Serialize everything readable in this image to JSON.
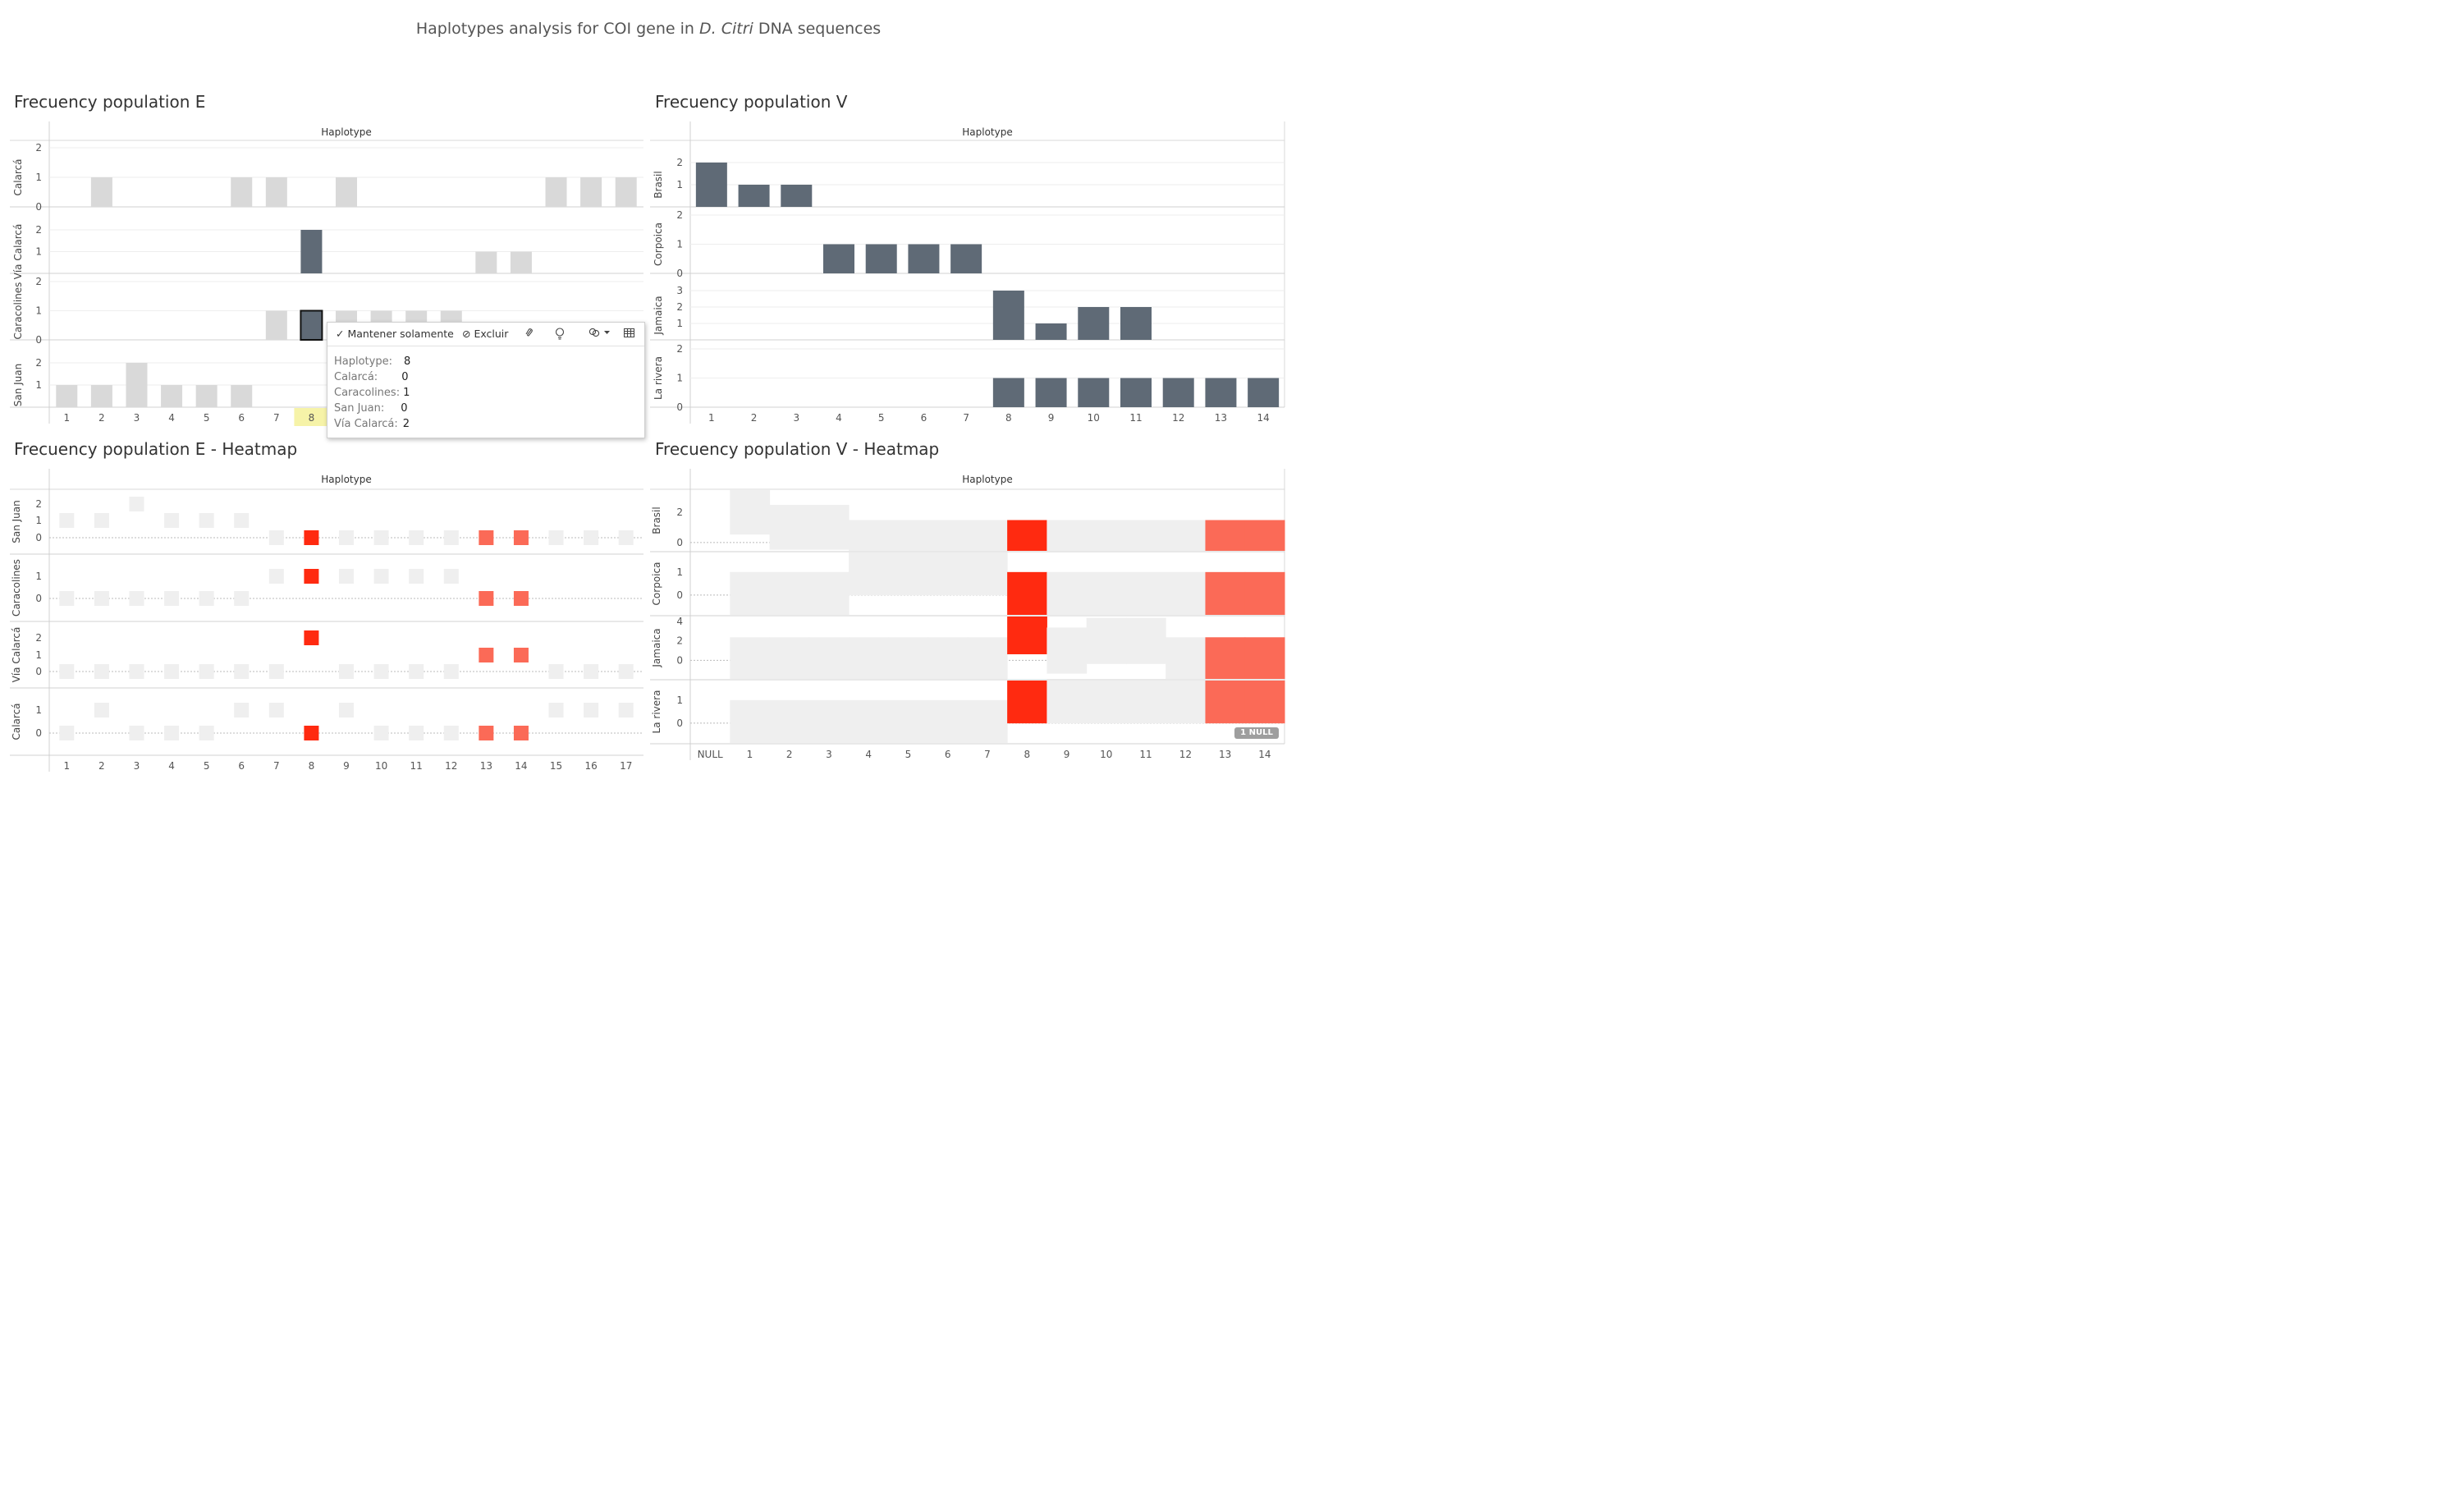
{
  "page": {
    "title_prefix": "Haplotypes analysis for COI gene in ",
    "title_species": "D. Citri",
    "title_suffix": " DNA sequences"
  },
  "colors": {
    "highlight_bar": "#5f6a76",
    "faded_bar": "#d9d9d9",
    "heat_light": "#efefef",
    "heat_red": "#ff2a10",
    "heat_salmon": "#fb6a57",
    "selected_tick": "#f6f3a8"
  },
  "tooltip": {
    "keep_only": "Mantener solamente",
    "exclude": "Excluir",
    "rows": [
      {
        "label": "Haplotype:",
        "value": "8"
      },
      {
        "label": "Calarcá:",
        "value": "0"
      },
      {
        "label": "Caracolines:",
        "value": "1"
      },
      {
        "label": "San Juan:",
        "value": "0"
      },
      {
        "label": "Vía Calarcá:",
        "value": "2"
      }
    ]
  },
  "null_badge": "1 NULL",
  "chart_data": [
    {
      "type": "bar",
      "title": "Frecuency population E",
      "xlabel": "Haplotype",
      "categories": [
        "1",
        "2",
        "3",
        "4",
        "5",
        "6",
        "7",
        "8",
        "9",
        "10",
        "11",
        "12",
        "13",
        "14",
        "15",
        "16",
        "17"
      ],
      "selected_category": "8",
      "series": [
        {
          "name": "Calarcá",
          "yticks": [
            "0",
            "1",
            "2"
          ],
          "ymax": 2,
          "values": [
            0,
            1,
            0,
            0,
            0,
            1,
            1,
            0,
            1,
            0,
            0,
            0,
            0,
            0,
            1,
            1,
            1
          ],
          "dark": [
            0,
            0,
            0,
            0,
            0,
            0,
            0,
            0,
            0,
            0,
            0,
            0,
            0,
            0,
            0,
            0,
            0
          ]
        },
        {
          "name": "Vía Calarcá",
          "yticks": [
            "1",
            "2"
          ],
          "ymax": 2,
          "values": [
            0,
            0,
            0,
            0,
            0,
            0,
            0,
            2,
            0,
            0,
            0,
            0,
            1,
            1,
            0,
            0,
            0
          ],
          "dark": [
            0,
            0,
            0,
            0,
            0,
            0,
            0,
            1,
            0,
            0,
            0,
            0,
            0,
            0,
            0,
            0,
            0
          ]
        },
        {
          "name": "Caracolines",
          "yticks": [
            "0",
            "1",
            "2"
          ],
          "ymax": 2,
          "values": [
            0,
            0,
            0,
            0,
            0,
            0,
            1,
            1,
            1,
            1,
            1,
            1,
            0,
            0,
            0,
            0,
            0
          ],
          "dark": [
            0,
            0,
            0,
            0,
            0,
            0,
            0,
            1,
            0,
            0,
            0,
            0,
            0,
            0,
            0,
            0,
            0
          ]
        },
        {
          "name": "San Juan",
          "yticks": [
            "1",
            "2"
          ],
          "ymax": 2,
          "values": [
            1,
            1,
            2,
            1,
            1,
            1,
            0,
            0,
            0,
            0,
            0,
            0,
            0,
            0,
            0,
            0,
            0
          ],
          "dark": [
            0,
            0,
            0,
            0,
            0,
            0,
            0,
            0,
            0,
            0,
            0,
            0,
            0,
            0,
            0,
            0,
            0
          ]
        }
      ]
    },
    {
      "type": "bar",
      "title": "Frecuency population V",
      "xlabel": "Haplotype",
      "categories": [
        "1",
        "2",
        "3",
        "4",
        "5",
        "6",
        "7",
        "8",
        "9",
        "10",
        "11",
        "12",
        "13",
        "14"
      ],
      "series": [
        {
          "name": "Brasil",
          "yticks": [
            "1",
            "2"
          ],
          "ymax": 2,
          "values": [
            2,
            1,
            1,
            0,
            0,
            0,
            0,
            0,
            0,
            0,
            0,
            0,
            0,
            0
          ]
        },
        {
          "name": "Corpoica",
          "yticks": [
            "0",
            "1",
            "2"
          ],
          "ymax": 2,
          "values": [
            0,
            0,
            0,
            1,
            1,
            1,
            1,
            0,
            0,
            0,
            0,
            0,
            0,
            0
          ]
        },
        {
          "name": "Jamaica",
          "yticks": [
            "1",
            "2",
            "3"
          ],
          "ymax": 3,
          "values": [
            0,
            0,
            0,
            0,
            0,
            0,
            0,
            3,
            1,
            2,
            2,
            0,
            0,
            0
          ]
        },
        {
          "name": "La rivera",
          "yticks": [
            "0",
            "1",
            "2"
          ],
          "ymax": 2,
          "values": [
            0,
            0,
            0,
            0,
            0,
            0,
            0,
            1,
            1,
            1,
            1,
            1,
            1,
            1
          ]
        }
      ]
    },
    {
      "type": "heatmap",
      "title": "Frecuency population E - Heatmap",
      "xlabel": "Haplotype",
      "categories": [
        "1",
        "2",
        "3",
        "4",
        "5",
        "6",
        "7",
        "8",
        "9",
        "10",
        "11",
        "12",
        "13",
        "14",
        "15",
        "16",
        "17"
      ],
      "series": [
        {
          "name": "San Juan",
          "yticks": [
            "0",
            "1",
            "2"
          ],
          "values": [
            1,
            1,
            2,
            1,
            1,
            1,
            0,
            0,
            0,
            0,
            0,
            0,
            0,
            0,
            0,
            0,
            0
          ],
          "colors": [
            "l",
            "l",
            "l",
            "l",
            "l",
            "l",
            "l",
            "r",
            "l",
            "l",
            "l",
            "l",
            "s",
            "s",
            "l",
            "l",
            "l"
          ]
        },
        {
          "name": "Caracolines",
          "yticks": [
            "0",
            "1"
          ],
          "values": [
            0,
            0,
            0,
            0,
            0,
            0,
            1,
            1,
            1,
            1,
            1,
            1,
            0,
            0,
            null,
            null,
            null
          ],
          "colors": [
            "l",
            "l",
            "l",
            "l",
            "l",
            "l",
            "l",
            "r",
            "l",
            "l",
            "l",
            "l",
            "s",
            "s",
            "l",
            "l",
            "l"
          ]
        },
        {
          "name": "Vía Calarcá",
          "yticks": [
            "0",
            "1",
            "2"
          ],
          "values": [
            0,
            0,
            0,
            0,
            0,
            0,
            0,
            2,
            0,
            0,
            0,
            0,
            1,
            1,
            0,
            0,
            0
          ],
          "colors": [
            "l",
            "l",
            "l",
            "l",
            "l",
            "l",
            "l",
            "r",
            "l",
            "l",
            "l",
            "l",
            "s",
            "s",
            "l",
            "l",
            "l"
          ]
        },
        {
          "name": "Calarcá",
          "yticks": [
            "0",
            "1"
          ],
          "values": [
            0,
            1,
            0,
            0,
            0,
            1,
            1,
            0,
            1,
            0,
            0,
            0,
            0,
            0,
            1,
            1,
            1
          ],
          "colors": [
            "l",
            "l",
            "l",
            "l",
            "l",
            "l",
            "l",
            "r",
            "l",
            "l",
            "l",
            "l",
            "s",
            "s",
            "l",
            "l",
            "l"
          ]
        }
      ]
    },
    {
      "type": "heatmap",
      "title": "Frecuency population V - Heatmap",
      "xlabel": "Haplotype",
      "categories": [
        "NULL",
        "1",
        "2",
        "3",
        "4",
        "5",
        "6",
        "7",
        "8",
        "9",
        "10",
        "11",
        "12",
        "13",
        "14"
      ],
      "series": [
        {
          "name": "Brasil",
          "yticks": [
            "0",
            "2"
          ],
          "ymin": -0.6,
          "ymax": 3.5,
          "values": [
            null,
            2,
            1,
            1,
            0,
            0,
            0,
            0,
            0,
            0,
            0,
            0,
            0,
            0,
            0
          ],
          "colors": [
            "l",
            "l",
            "l",
            "l",
            "l",
            "l",
            "l",
            "l",
            "r",
            "l",
            "l",
            "l",
            "l",
            "s",
            "s"
          ]
        },
        {
          "name": "Corpoica",
          "yticks": [
            "0",
            "1"
          ],
          "ymin": -0.9,
          "ymax": 1.9,
          "values": [
            null,
            0,
            0,
            0,
            1,
            1,
            1,
            1,
            0,
            0,
            0,
            0,
            0,
            0,
            0
          ],
          "colors": [
            "l",
            "l",
            "l",
            "l",
            "l",
            "l",
            "l",
            "l",
            "r",
            "l",
            "l",
            "l",
            "l",
            "s",
            "s"
          ]
        },
        {
          "name": "Jamaica",
          "yticks": [
            "0",
            "2",
            "4"
          ],
          "ymin": -2,
          "ymax": 4.6,
          "values": [
            null,
            0,
            0,
            0,
            0,
            0,
            0,
            0,
            3,
            1,
            2,
            2,
            0,
            0,
            0
          ],
          "colors": [
            "l",
            "l",
            "l",
            "l",
            "l",
            "l",
            "l",
            "l",
            "r",
            "l",
            "l",
            "l",
            "l",
            "s",
            "s"
          ]
        },
        {
          "name": "La rivera",
          "yticks": [
            "0",
            "1"
          ],
          "ymin": -0.9,
          "ymax": 1.9,
          "values": [
            null,
            0,
            0,
            0,
            0,
            0,
            0,
            0,
            1,
            1,
            1,
            1,
            1,
            1,
            1
          ],
          "colors": [
            "l",
            "l",
            "l",
            "l",
            "l",
            "l",
            "l",
            "l",
            "r",
            "l",
            "l",
            "l",
            "l",
            "s",
            "s"
          ]
        }
      ]
    }
  ]
}
